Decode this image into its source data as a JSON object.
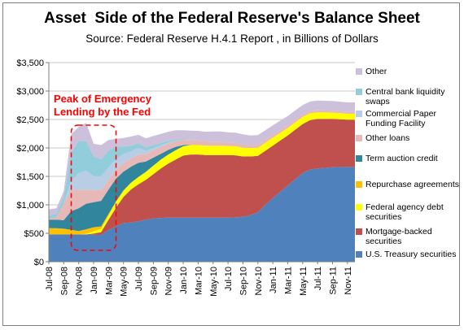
{
  "chart_data": {
    "type": "area",
    "stacked": true,
    "title": "Asset  Side of the Federal Reserve's Balance Sheet",
    "subtitle": "Source: Federal Reserve H.4.1 Report , in Billions of Dollars",
    "xlabel": "",
    "ylabel": "",
    "x_start": "Jul-08",
    "x_step": "month",
    "x_tick_labels": [
      "Jul-08",
      "Sep-08",
      "Nov-08",
      "Jan-09",
      "Mar-09",
      "May-09",
      "Jul-09",
      "Sep-09",
      "Nov-09",
      "Jan-10",
      "Mar-10",
      "May-10",
      "Jul-10",
      "Sep-10",
      "Nov-10",
      "Jan-11",
      "Mar-11",
      "May-11",
      "Jul-11",
      "Sep-11",
      "Nov-11"
    ],
    "ylim": [
      0,
      3500
    ],
    "y_tick_values": [
      0,
      500,
      1000,
      1500,
      2000,
      2500,
      3000,
      3500
    ],
    "y_tick_labels": [
      "$0",
      "$500",
      "$1,000",
      "$1,500",
      "$2,000",
      "$2,500",
      "$3,000",
      "$3,500"
    ],
    "grid": "horizontal",
    "legend_position": "right",
    "x": [
      "Jul-08",
      "Aug-08",
      "Sep-08",
      "Oct-08",
      "Nov-08",
      "Dec-08",
      "Jan-09",
      "Feb-09",
      "Mar-09",
      "Apr-09",
      "May-09",
      "Jun-09",
      "Jul-09",
      "Aug-09",
      "Sep-09",
      "Oct-09",
      "Nov-09",
      "Dec-09",
      "Jan-10",
      "Feb-10",
      "Mar-10",
      "Apr-10",
      "May-10",
      "Jun-10",
      "Jul-10",
      "Aug-10",
      "Sep-10",
      "Oct-10",
      "Nov-10",
      "Dec-10",
      "Jan-11",
      "Feb-11",
      "Mar-11",
      "Apr-11",
      "May-11",
      "Jun-11",
      "Jul-11",
      "Aug-11",
      "Sep-11",
      "Oct-11",
      "Nov-11",
      "Dec-11"
    ],
    "series": [
      {
        "name": "U.S. Treasury securities",
        "color": "#4f81bd",
        "values": [
          480,
          480,
          480,
          480,
          480,
          480,
          475,
          470,
          560,
          620,
          680,
          690,
          710,
          740,
          760,
          770,
          775,
          775,
          775,
          775,
          775,
          775,
          775,
          775,
          775,
          780,
          790,
          820,
          870,
          1000,
          1120,
          1230,
          1340,
          1450,
          1560,
          1620,
          1640,
          1650,
          1660,
          1665,
          1665,
          1665
        ]
      },
      {
        "name": "Mortgage-backed securities",
        "color": "#c0504d",
        "values": [
          0,
          0,
          0,
          0,
          0,
          0,
          20,
          50,
          180,
          330,
          460,
          580,
          650,
          700,
          780,
          870,
          950,
          1020,
          1090,
          1110,
          1110,
          1100,
          1100,
          1100,
          1100,
          1090,
          1060,
          1030,
          990,
          950,
          920,
          900,
          880,
          870,
          860,
          870,
          870,
          860,
          850,
          840,
          830,
          830
        ]
      },
      {
        "name": "Federal agency debt securities",
        "color": "#ffff00",
        "values": [
          0,
          0,
          0,
          0,
          0,
          10,
          40,
          60,
          80,
          100,
          110,
          120,
          130,
          140,
          150,
          155,
          160,
          165,
          165,
          165,
          165,
          165,
          165,
          163,
          160,
          158,
          155,
          150,
          145,
          142,
          140,
          135,
          130,
          128,
          125,
          120,
          116,
          113,
          110,
          108,
          105,
          105
        ]
      },
      {
        "name": "Repurchase agreements",
        "color": "#ffc000",
        "values": [
          110,
          110,
          100,
          80,
          60,
          80,
          70,
          40,
          20,
          10,
          5,
          0,
          0,
          0,
          0,
          0,
          0,
          0,
          0,
          0,
          0,
          0,
          0,
          0,
          0,
          0,
          0,
          0,
          0,
          0,
          0,
          0,
          0,
          0,
          0,
          0,
          0,
          0,
          0,
          0,
          0,
          0
        ]
      },
      {
        "name": "Term auction credit",
        "color": "#31859c",
        "values": [
          150,
          150,
          150,
          330,
          400,
          450,
          440,
          450,
          430,
          400,
          330,
          280,
          250,
          180,
          140,
          100,
          80,
          60,
          20,
          0,
          0,
          0,
          0,
          0,
          0,
          0,
          0,
          0,
          0,
          0,
          0,
          0,
          0,
          0,
          0,
          0,
          0,
          0,
          0,
          0,
          0,
          0
        ]
      },
      {
        "name": "Other loans",
        "color": "#e6b8b7",
        "values": [
          20,
          40,
          300,
          380,
          320,
          250,
          210,
          190,
          170,
          160,
          150,
          140,
          140,
          130,
          130,
          120,
          110,
          100,
          90,
          90,
          80,
          75,
          70,
          70,
          60,
          60,
          55,
          50,
          50,
          48,
          45,
          45,
          40,
          40,
          40,
          35,
          35,
          35,
          35,
          30,
          30,
          30
        ]
      },
      {
        "name": "Commercial Paper Funding Facility",
        "color": "#b9cde5",
        "values": [
          0,
          0,
          0,
          150,
          300,
          330,
          250,
          240,
          220,
          180,
          160,
          130,
          120,
          60,
          40,
          30,
          20,
          10,
          0,
          0,
          0,
          0,
          0,
          0,
          0,
          0,
          0,
          0,
          0,
          0,
          0,
          0,
          0,
          0,
          0,
          0,
          0,
          0,
          0,
          0,
          0,
          0
        ]
      },
      {
        "name": "Central bank liquidity swaps",
        "color": "#92cddc",
        "values": [
          60,
          60,
          110,
          500,
          560,
          520,
          350,
          300,
          300,
          220,
          130,
          100,
          80,
          60,
          50,
          40,
          30,
          20,
          10,
          5,
          0,
          0,
          0,
          0,
          0,
          0,
          0,
          0,
          0,
          0,
          0,
          0,
          0,
          0,
          0,
          0,
          0,
          0,
          0,
          0,
          0,
          0
        ]
      },
      {
        "name": "Other",
        "color": "#ccc0da",
        "values": [
          100,
          100,
          100,
          320,
          250,
          320,
          220,
          250,
          180,
          140,
          150,
          160,
          150,
          160,
          160,
          160,
          160,
          160,
          160,
          160,
          170,
          170,
          180,
          180,
          180,
          180,
          180,
          170,
          170,
          170,
          170,
          170,
          170,
          170,
          170,
          170,
          170,
          170,
          170,
          170,
          170,
          170
        ]
      }
    ],
    "annotation": {
      "text": "Peak of Emergency\nLending by the Fed",
      "color": "#ff0000",
      "x_range": [
        "Oct-08",
        "Apr-09"
      ],
      "y_range": [
        200,
        2400
      ]
    }
  }
}
